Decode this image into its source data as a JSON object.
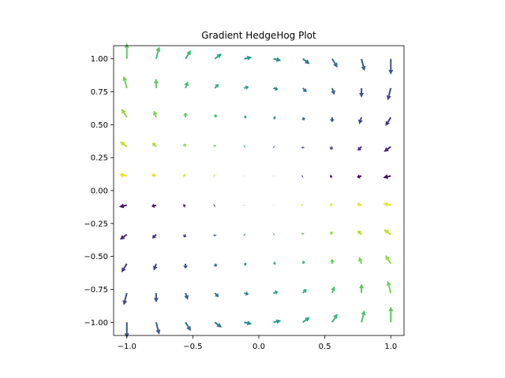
{
  "chart_data": {
    "type": "quiver",
    "title": "Gradient HedgeHog Plot",
    "xlabel": "",
    "ylabel": "",
    "xlim": [
      -1.1,
      1.1
    ],
    "ylim": [
      -1.1,
      1.1
    ],
    "x_ticks": [
      -1.0,
      -0.5,
      0.0,
      0.5,
      1.0
    ],
    "x_tick_labels": [
      "−1.0",
      "−0.5",
      "0.0",
      "0.5",
      "1.0"
    ],
    "y_ticks": [
      -1.0,
      -0.75,
      -0.5,
      -0.25,
      0.0,
      0.25,
      0.5,
      0.75,
      1.0
    ],
    "y_tick_labels": [
      "−1.00",
      "−0.75",
      "−0.50",
      "−0.25",
      "0.00",
      "0.25",
      "0.50",
      "0.75",
      "1.00"
    ],
    "grid": false,
    "legend": "none",
    "colormap": "viridis",
    "grid_points": {
      "x": [
        -1.0,
        -0.7778,
        -0.5556,
        -0.3333,
        -0.1111,
        0.1111,
        0.3333,
        0.5556,
        0.7778,
        1.0
      ],
      "y": [
        -1.0,
        -0.7778,
        -0.5556,
        -0.3333,
        -0.1111,
        0.1111,
        0.3333,
        0.5556,
        0.7778,
        1.0
      ]
    },
    "vector_field": {
      "u": "y*y - x*x",
      "v": "-2*x*y",
      "note_color": "colour = direction angle mapped through viridis"
    }
  }
}
